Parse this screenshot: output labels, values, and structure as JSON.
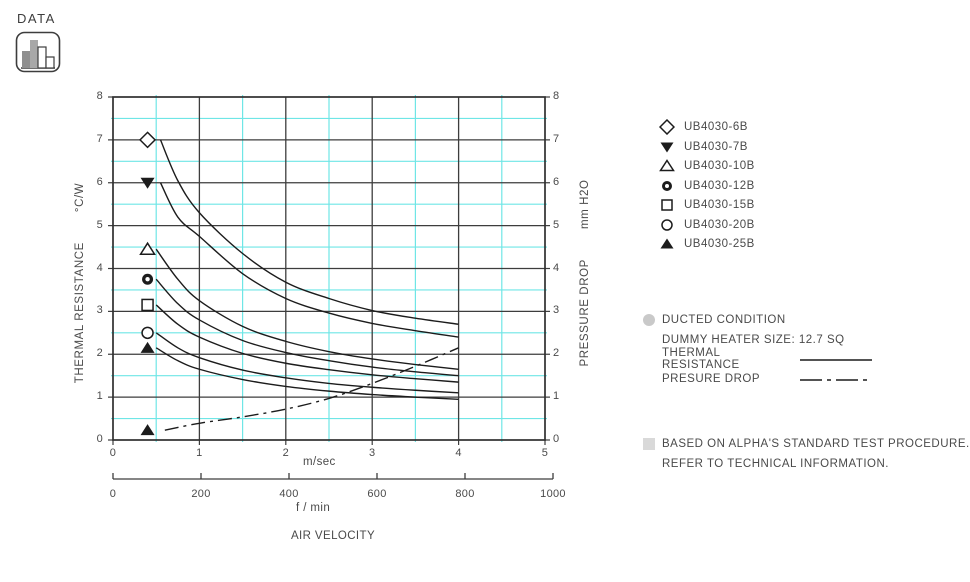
{
  "badge": {
    "label": "DATA"
  },
  "colors": {
    "grid_major": "#3d3d3d",
    "grid_minor": "#6fe6e6",
    "border": "#2f2f2f",
    "curve": "#1c1c1c",
    "text": "#4a4a4a",
    "bullet_circle": "#c9c9c9",
    "bullet_square": "#d9d9d9"
  },
  "chart_data": {
    "type": "line",
    "title": "",
    "grid": "on",
    "x_axis": {
      "label_primary": "m/sec",
      "label_secondary": "f / min",
      "title": "AIR VELOCITY",
      "range_msec": [
        0,
        5
      ],
      "ticks_msec": [
        0,
        1,
        2,
        3,
        4,
        5
      ],
      "ticks_fmin": [
        0,
        200,
        400,
        600,
        800,
        1000
      ]
    },
    "y_axis_left": {
      "title": "THERMAL RESISTANCE",
      "unit": "°C/W",
      "range": [
        0,
        8
      ],
      "ticks": [
        0,
        1,
        2,
        3,
        4,
        5,
        6,
        7,
        8
      ]
    },
    "y_axis_right": {
      "title": "PRESSURE DROP",
      "unit": "mm H2O",
      "range": [
        0,
        8
      ],
      "ticks": [
        0,
        1,
        2,
        3,
        4,
        5,
        6,
        7,
        8
      ]
    },
    "series": [
      {
        "name": "UB4030-6B",
        "kind": "thermal",
        "marker": "diamond-open",
        "marker_point": [
          0.4,
          7.0
        ],
        "points": [
          [
            0.55,
            7.0
          ],
          [
            0.75,
            6.05
          ],
          [
            1,
            5.3
          ],
          [
            1.5,
            4.35
          ],
          [
            2,
            3.68
          ],
          [
            2.5,
            3.3
          ],
          [
            3,
            3.02
          ],
          [
            3.5,
            2.84
          ],
          [
            4,
            2.7
          ]
        ]
      },
      {
        "name": "UB4030-7B",
        "kind": "thermal",
        "marker": "triangle-down-filled",
        "marker_point": [
          0.4,
          6.0
        ],
        "points": [
          [
            0.55,
            6.0
          ],
          [
            0.75,
            5.2
          ],
          [
            1,
            4.75
          ],
          [
            1.5,
            3.88
          ],
          [
            2,
            3.3
          ],
          [
            2.5,
            2.96
          ],
          [
            3,
            2.72
          ],
          [
            3.5,
            2.55
          ],
          [
            4,
            2.4
          ]
        ]
      },
      {
        "name": "UB4030-10B",
        "kind": "thermal",
        "marker": "triangle-up-open",
        "marker_point": [
          0.4,
          4.45
        ],
        "points": [
          [
            0.5,
            4.45
          ],
          [
            0.75,
            3.75
          ],
          [
            1,
            3.25
          ],
          [
            1.5,
            2.65
          ],
          [
            2,
            2.3
          ],
          [
            2.5,
            2.06
          ],
          [
            3,
            1.89
          ],
          [
            3.5,
            1.76
          ],
          [
            4,
            1.65
          ]
        ]
      },
      {
        "name": "UB4030-12B",
        "kind": "thermal",
        "marker": "circle-bullseye",
        "marker_point": [
          0.4,
          3.75
        ],
        "points": [
          [
            0.5,
            3.75
          ],
          [
            0.75,
            3.18
          ],
          [
            1,
            2.8
          ],
          [
            1.5,
            2.32
          ],
          [
            2,
            2.04
          ],
          [
            2.5,
            1.85
          ],
          [
            3,
            1.7
          ],
          [
            3.5,
            1.59
          ],
          [
            4,
            1.5
          ]
        ]
      },
      {
        "name": "UB4030-15B",
        "kind": "thermal",
        "marker": "square-open",
        "marker_point": [
          0.4,
          3.15
        ],
        "points": [
          [
            0.5,
            3.15
          ],
          [
            0.75,
            2.7
          ],
          [
            1,
            2.4
          ],
          [
            1.5,
            2.02
          ],
          [
            2,
            1.79
          ],
          [
            2.5,
            1.64
          ],
          [
            3,
            1.52
          ],
          [
            3.5,
            1.43
          ],
          [
            4,
            1.35
          ]
        ]
      },
      {
        "name": "UB4030-20B",
        "kind": "thermal",
        "marker": "circle-open",
        "marker_point": [
          0.4,
          2.5
        ],
        "points": [
          [
            0.5,
            2.5
          ],
          [
            0.75,
            2.15
          ],
          [
            1,
            1.92
          ],
          [
            1.5,
            1.63
          ],
          [
            2,
            1.45
          ],
          [
            2.5,
            1.32
          ],
          [
            3,
            1.23
          ],
          [
            3.5,
            1.16
          ],
          [
            4,
            1.1
          ]
        ]
      },
      {
        "name": "UB4030-25B",
        "kind": "thermal",
        "marker": "triangle-up-filled",
        "marker_point": [
          0.4,
          2.15
        ],
        "points": [
          [
            0.5,
            2.15
          ],
          [
            0.75,
            1.85
          ],
          [
            1,
            1.65
          ],
          [
            1.5,
            1.41
          ],
          [
            2,
            1.25
          ],
          [
            2.5,
            1.14
          ],
          [
            3,
            1.06
          ],
          [
            3.5,
            1.0
          ],
          [
            4,
            0.95
          ]
        ]
      },
      {
        "name": "PRESSURE DROP",
        "kind": "pressure",
        "style": "dashdot",
        "marker": "triangle-up-filled",
        "marker_point": [
          0.4,
          0.23
        ],
        "points": [
          [
            0.6,
            0.23
          ],
          [
            1,
            0.39
          ],
          [
            1.5,
            0.54
          ],
          [
            2,
            0.72
          ],
          [
            2.5,
            0.97
          ],
          [
            3,
            1.32
          ],
          [
            3.5,
            1.72
          ],
          [
            4,
            2.15
          ]
        ]
      }
    ]
  },
  "legend": {
    "items": [
      {
        "marker": "diamond-open",
        "label": "UB4030-6B"
      },
      {
        "marker": "triangle-down-filled",
        "label": "UB4030-7B"
      },
      {
        "marker": "triangle-up-open",
        "label": "UB4030-10B"
      },
      {
        "marker": "circle-bullseye",
        "label": "UB4030-12B"
      },
      {
        "marker": "square-open",
        "label": "UB4030-15B"
      },
      {
        "marker": "circle-open",
        "label": "UB4030-20B"
      },
      {
        "marker": "triangle-up-filled",
        "label": "UB4030-25B"
      }
    ]
  },
  "notes": {
    "condition": "DUCTED CONDITION",
    "heater": "DUMMY HEATER SIZE: 12.7 SQ",
    "thermal_label": "THERMAL RESISTANCE",
    "pressure_label": "PRESURE DROP"
  },
  "footer": {
    "line1": "BASED ON ALPHA'S STANDARD TEST PROCEDURE.",
    "line2": "REFER TO TECHNICAL INFORMATION."
  }
}
